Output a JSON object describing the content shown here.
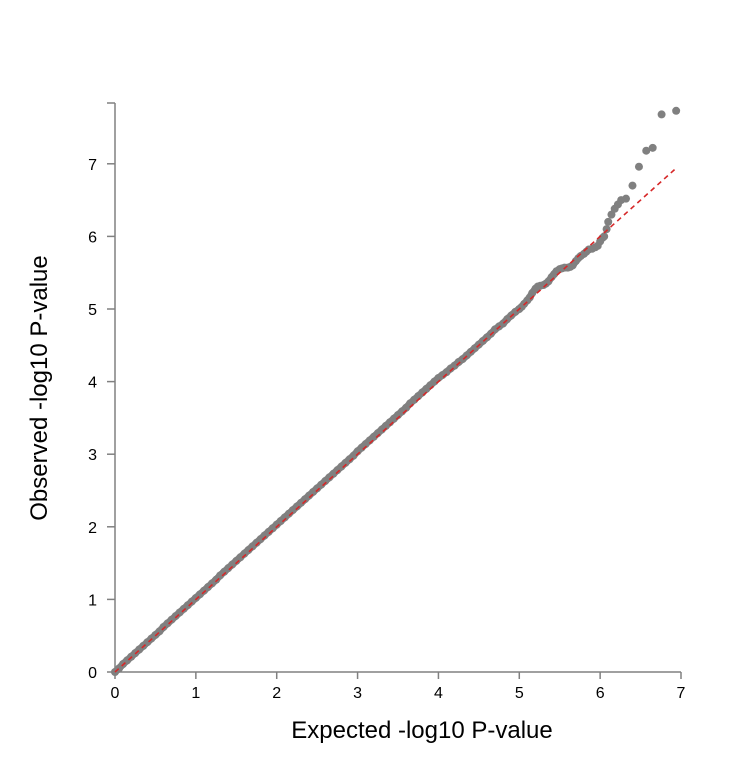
{
  "chart_data": {
    "type": "scatter",
    "title": "",
    "xlabel": "Expected -log10 P-value",
    "ylabel": "Observed -log10 P-value",
    "xlim": [
      0,
      7
    ],
    "ylim": [
      0,
      7.8
    ],
    "x_ticks": [
      "0",
      "1",
      "2",
      "3",
      "4",
      "5",
      "6",
      "7"
    ],
    "y_ticks": [
      "0",
      "1",
      "2",
      "3",
      "4",
      "5",
      "6",
      "7"
    ],
    "grid": false,
    "reference_line": {
      "from": [
        0,
        0
      ],
      "to": [
        6.95,
        6.95
      ],
      "style": "dashed"
    },
    "colors": {
      "points": "#808080",
      "reference_line": "#d62728",
      "axis": "#808080"
    },
    "series": [
      {
        "x": [
          0.0,
          0.05,
          0.1,
          0.15,
          0.2,
          0.25,
          0.3,
          0.35,
          0.4,
          0.45,
          0.5,
          0.55,
          0.6,
          0.65,
          0.7,
          0.75,
          0.8,
          0.85,
          0.9,
          0.95,
          1.0,
          1.05,
          1.1,
          1.15,
          1.2,
          1.25,
          1.3,
          1.35,
          1.4,
          1.45,
          1.5,
          1.55,
          1.6,
          1.65,
          1.7,
          1.75,
          1.8,
          1.85,
          1.9,
          1.95,
          2.0,
          2.05,
          2.1,
          2.15,
          2.2,
          2.25,
          2.3,
          2.35,
          2.4,
          2.45,
          2.5,
          2.55,
          2.6,
          2.65,
          2.7,
          2.75,
          2.8,
          2.85,
          2.9,
          2.95,
          3.0,
          3.05,
          3.1,
          3.15,
          3.2,
          3.25,
          3.3,
          3.35,
          3.4,
          3.45,
          3.5,
          3.55,
          3.6,
          3.65,
          3.7,
          3.75,
          3.8,
          3.85,
          3.9,
          3.95,
          4.0,
          4.05,
          4.1,
          4.15,
          4.2,
          4.25,
          4.3,
          4.35,
          4.4,
          4.45,
          4.5,
          4.55,
          4.6,
          4.65,
          4.7,
          4.75,
          4.8,
          4.85,
          4.9,
          4.95,
          5.0,
          5.03,
          5.06,
          5.1,
          5.13,
          5.16,
          5.2,
          5.23,
          5.26,
          5.3,
          5.33,
          5.36,
          5.4,
          5.43,
          5.46,
          5.5,
          5.53,
          5.56,
          5.6,
          5.63,
          5.66,
          5.7,
          5.73,
          5.76,
          5.8,
          5.83,
          5.86,
          5.9,
          5.94,
          5.97,
          6.0,
          6.03,
          6.05,
          6.08,
          6.1,
          6.14,
          6.18,
          6.22,
          6.26,
          6.32,
          6.4,
          6.48,
          6.57,
          6.65,
          6.76,
          6.94
        ],
        "y": [
          0.0,
          0.05,
          0.11,
          0.16,
          0.21,
          0.26,
          0.31,
          0.36,
          0.41,
          0.46,
          0.51,
          0.56,
          0.62,
          0.67,
          0.72,
          0.77,
          0.82,
          0.87,
          0.92,
          0.97,
          1.02,
          1.07,
          1.12,
          1.17,
          1.22,
          1.27,
          1.33,
          1.38,
          1.43,
          1.48,
          1.53,
          1.58,
          1.63,
          1.68,
          1.73,
          1.78,
          1.83,
          1.88,
          1.93,
          1.98,
          2.03,
          2.08,
          2.13,
          2.18,
          2.23,
          2.28,
          2.33,
          2.38,
          2.43,
          2.48,
          2.53,
          2.58,
          2.63,
          2.68,
          2.73,
          2.78,
          2.83,
          2.88,
          2.93,
          2.98,
          3.04,
          3.09,
          3.14,
          3.19,
          3.24,
          3.29,
          3.34,
          3.39,
          3.44,
          3.49,
          3.54,
          3.59,
          3.64,
          3.7,
          3.75,
          3.8,
          3.85,
          3.9,
          3.95,
          4.0,
          4.05,
          4.09,
          4.13,
          4.18,
          4.22,
          4.27,
          4.31,
          4.36,
          4.41,
          4.46,
          4.51,
          4.56,
          4.61,
          4.66,
          4.72,
          4.76,
          4.8,
          4.86,
          4.91,
          4.96,
          5.0,
          5.03,
          5.07,
          5.12,
          5.16,
          5.22,
          5.28,
          5.31,
          5.32,
          5.33,
          5.35,
          5.38,
          5.44,
          5.48,
          5.52,
          5.55,
          5.56,
          5.57,
          5.57,
          5.58,
          5.6,
          5.66,
          5.7,
          5.73,
          5.76,
          5.79,
          5.82,
          5.83,
          5.85,
          5.87,
          5.93,
          5.98,
          6.0,
          6.1,
          6.2,
          6.3,
          6.38,
          6.44,
          6.5,
          6.52,
          6.7,
          6.96,
          7.18,
          7.22,
          7.68,
          7.73
        ]
      }
    ]
  }
}
